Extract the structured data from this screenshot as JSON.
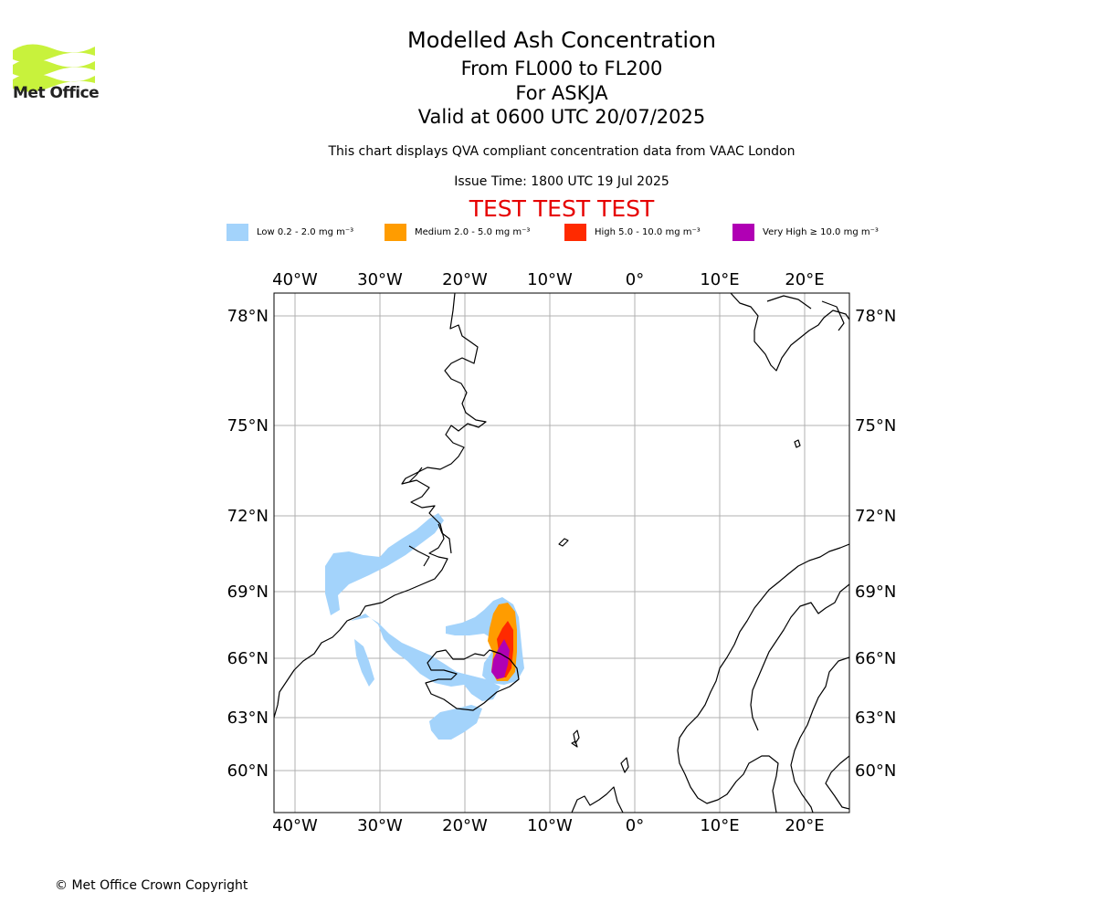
{
  "header": {
    "logo_text": "Met Office",
    "title": "Modelled Ash Concentration",
    "levels": "From FL000 to FL200",
    "volcano": "For ASKJA",
    "valid": "Valid at 0600 UTC 20/07/2025",
    "description": "This chart displays QVA compliant concentration data from VAAC London",
    "issue_time": "Issue Time: 1800 UTC 19 Jul 2025",
    "banner": "TEST TEST TEST"
  },
  "legend": [
    {
      "label": "Low 0.2 - 2.0 mg m⁻³",
      "color": "#a3d3fb"
    },
    {
      "label": "Medium 2.0 - 5.0 mg m⁻³",
      "color": "#ff9c00"
    },
    {
      "label": "High 5.0 - 10.0 mg m⁻³",
      "color": "#ff2a00"
    },
    {
      "label": "Very High ≥ 10.0 mg m⁻³",
      "color": "#b000b4"
    }
  ],
  "map": {
    "lon_ticks": [
      "40°W",
      "30°W",
      "20°W",
      "10°W",
      "0°",
      "10°E",
      "20°E"
    ],
    "lat_ticks": [
      "78°N",
      "75°N",
      "72°N",
      "69°N",
      "66°N",
      "63°N",
      "60°N"
    ]
  },
  "footer": {
    "copyright": "© Met Office Crown Copyright"
  }
}
